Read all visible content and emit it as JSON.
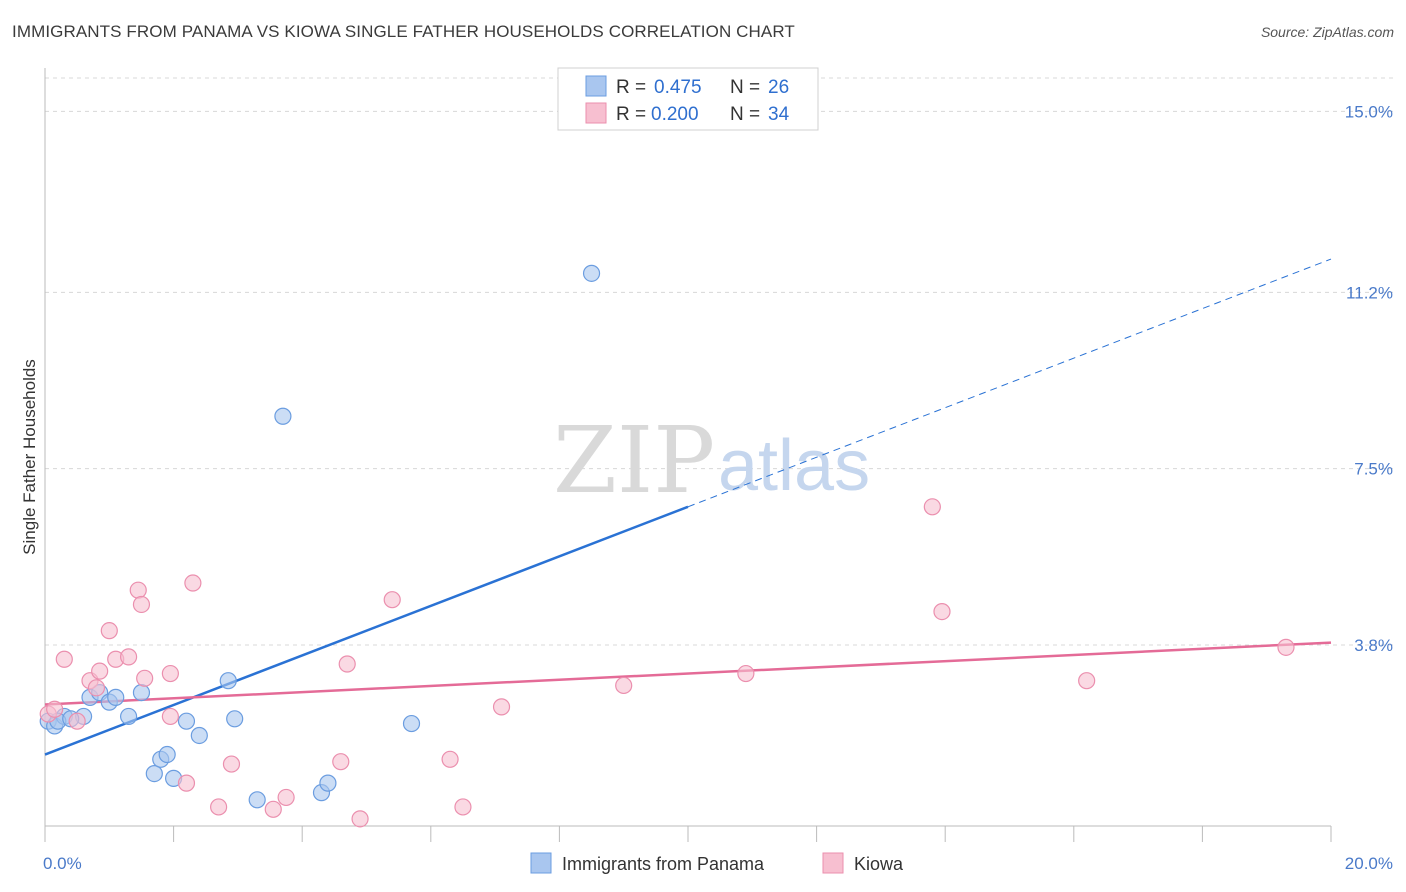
{
  "header": {
    "title": "IMMIGRANTS FROM PANAMA VS KIOWA SINGLE FATHER HOUSEHOLDS CORRELATION CHART",
    "source": "Source: ZipAtlas.com"
  },
  "watermark": {
    "zip": "ZIP",
    "atlas": "atlas"
  },
  "legend": {
    "items": [
      {
        "r_label": "R = ",
        "r_value": "0.475",
        "n_label": "N = ",
        "n_value": "26"
      },
      {
        "r_label": "R = ",
        "r_value": "0.200",
        "n_label": "N = ",
        "n_value": "34"
      }
    ]
  },
  "bottom_legend": [
    "Immigrants from Panama",
    "Kiowa"
  ],
  "colors": {
    "blue_fill": "#a9c6ef",
    "blue_stroke": "#6b9de0",
    "blue_line": "#2a72d4",
    "pink_fill": "#f7bfd0",
    "pink_stroke": "#eb8fae",
    "pink_line": "#e46b97",
    "grid": "#d8d8d8"
  },
  "chart_data": {
    "type": "scatter",
    "title": "IMMIGRANTS FROM PANAMA VS KIOWA SINGLE FATHER HOUSEHOLDS CORRELATION CHART",
    "xlabel": "",
    "ylabel": "Single Father Households",
    "xlim": [
      0,
      20
    ],
    "ylim": [
      0,
      15.7
    ],
    "x_tick_labels": [
      "0.0%",
      "20.0%"
    ],
    "y_ticks": [
      3.8,
      7.5,
      11.2,
      15.0
    ],
    "y_tick_labels": [
      "3.8%",
      "7.5%",
      "11.2%",
      "15.0%"
    ],
    "series": [
      {
        "name": "Immigrants from Panama",
        "color": "blue",
        "points": [
          [
            0.05,
            2.2
          ],
          [
            0.15,
            2.1
          ],
          [
            0.3,
            2.3
          ],
          [
            0.6,
            2.3
          ],
          [
            0.7,
            2.7
          ],
          [
            0.85,
            2.8
          ],
          [
            1.0,
            2.6
          ],
          [
            1.1,
            2.7
          ],
          [
            1.3,
            2.3
          ],
          [
            1.5,
            2.8
          ],
          [
            1.7,
            1.1
          ],
          [
            1.8,
            1.4
          ],
          [
            1.9,
            1.5
          ],
          [
            2.0,
            1.0
          ],
          [
            2.2,
            2.2
          ],
          [
            2.4,
            1.9
          ],
          [
            2.85,
            3.05
          ],
          [
            2.95,
            2.25
          ],
          [
            3.3,
            0.55
          ],
          [
            3.7,
            8.6
          ],
          [
            4.3,
            0.7
          ],
          [
            4.4,
            0.9
          ],
          [
            5.7,
            2.15
          ],
          [
            8.5,
            11.6
          ],
          [
            0.2,
            2.2
          ],
          [
            0.4,
            2.25
          ]
        ],
        "trend": {
          "x": [
            0,
            10
          ],
          "y": [
            1.5,
            6.7
          ],
          "dashed_extension": {
            "x": [
              10,
              20
            ],
            "y": [
              6.7,
              11.9
            ]
          }
        }
      },
      {
        "name": "Kiowa",
        "color": "pink",
        "points": [
          [
            0.05,
            2.35
          ],
          [
            0.3,
            3.5
          ],
          [
            0.5,
            2.2
          ],
          [
            0.7,
            3.05
          ],
          [
            0.8,
            2.9
          ],
          [
            0.85,
            3.25
          ],
          [
            1.0,
            4.1
          ],
          [
            1.1,
            3.5
          ],
          [
            1.3,
            3.55
          ],
          [
            1.45,
            4.95
          ],
          [
            1.5,
            4.65
          ],
          [
            1.55,
            3.1
          ],
          [
            1.95,
            3.2
          ],
          [
            1.95,
            2.3
          ],
          [
            2.2,
            0.9
          ],
          [
            2.3,
            5.1
          ],
          [
            2.7,
            0.4
          ],
          [
            2.9,
            1.3
          ],
          [
            3.55,
            0.35
          ],
          [
            3.75,
            0.6
          ],
          [
            4.6,
            1.35
          ],
          [
            4.7,
            3.4
          ],
          [
            4.9,
            0.15
          ],
          [
            5.4,
            4.75
          ],
          [
            6.3,
            1.4
          ],
          [
            6.5,
            0.4
          ],
          [
            7.1,
            2.5
          ],
          [
            9.0,
            2.95
          ],
          [
            10.9,
            3.2
          ],
          [
            13.8,
            6.7
          ],
          [
            13.95,
            4.5
          ],
          [
            16.2,
            3.05
          ],
          [
            19.3,
            3.75
          ],
          [
            0.15,
            2.45
          ]
        ],
        "trend": {
          "x": [
            0,
            20
          ],
          "y": [
            2.55,
            3.85
          ]
        }
      }
    ]
  }
}
